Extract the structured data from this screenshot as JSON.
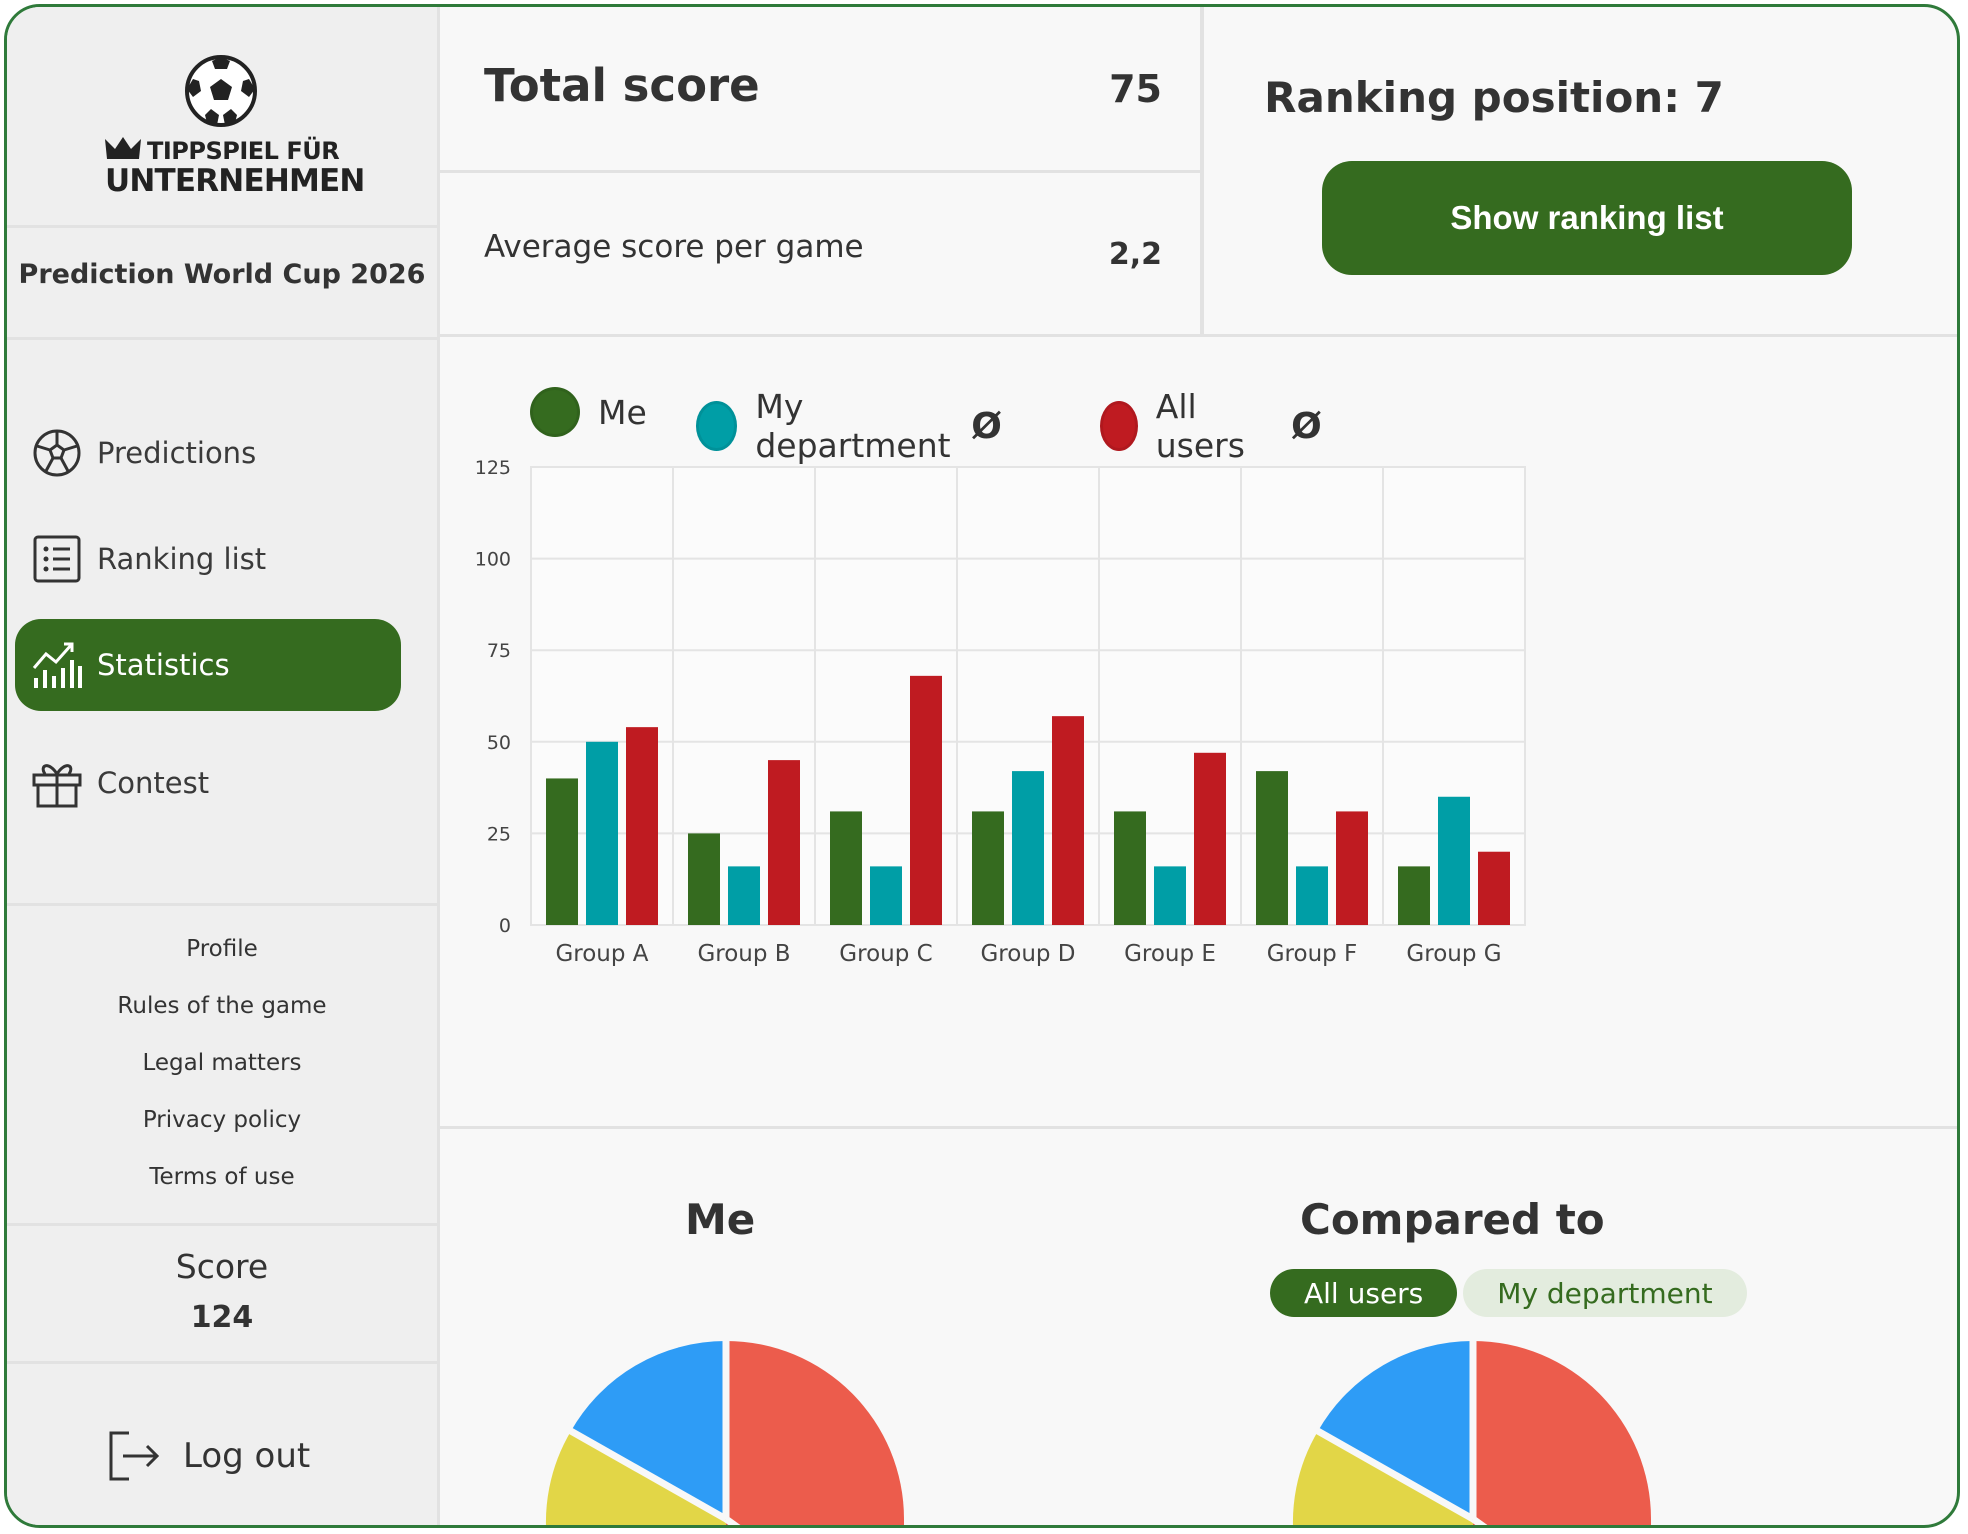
{
  "app": {
    "brand_line1": "TIPPSPIEL FÜR",
    "brand_line2": "UNTERNEHMEN",
    "game_title": "Prediction World Cup 2026"
  },
  "nav": [
    {
      "label": "Predictions",
      "icon": "soccer-ball-icon",
      "active": false
    },
    {
      "label": "Ranking list",
      "icon": "list-icon",
      "active": false
    },
    {
      "label": "Statistics",
      "icon": "chart-icon",
      "active": true
    },
    {
      "label": "Contest",
      "icon": "gift-icon",
      "active": false
    }
  ],
  "footer_links": [
    "Profile",
    "Rules of the game",
    "Legal matters",
    "Privacy policy",
    "Terms of use"
  ],
  "score": {
    "label": "Score",
    "value": "124"
  },
  "logout": {
    "label": "Log out"
  },
  "summary": {
    "total_label": "Total score",
    "total_value": "75",
    "avg_label": "Average score per game",
    "avg_value": "2,2",
    "ranking_label": "Ranking position: 7",
    "ranking_button": "Show ranking list"
  },
  "legend": {
    "me": "Me",
    "department": "My department",
    "all": "All users",
    "avg_symbol": "Ø"
  },
  "colors": {
    "accent": "#356b1f",
    "me": "#356b1f",
    "department": "#009ea6",
    "all": "#bf1b21",
    "pie_red": "#ec5c4c",
    "pie_blue": "#2e9cf6",
    "pie_yellow": "#e2d647"
  },
  "chart_data": {
    "type": "bar",
    "categories": [
      "Group A",
      "Group B",
      "Group C",
      "Group D",
      "Group E",
      "Group F",
      "Group G"
    ],
    "series": [
      {
        "name": "Me",
        "values": [
          40,
          25,
          31,
          31,
          31,
          42,
          16
        ]
      },
      {
        "name": "My department Ø",
        "values": [
          50,
          16,
          16,
          42,
          16,
          16,
          35
        ]
      },
      {
        "name": "All users Ø",
        "values": [
          54,
          45,
          68,
          57,
          47,
          31,
          20
        ]
      }
    ],
    "yticks": [
      0,
      25,
      50,
      75,
      100,
      125
    ],
    "ylim": [
      0,
      125
    ],
    "grid": true,
    "legend": "top"
  },
  "pies": {
    "me_title": "Me",
    "compare_title": "Compared to",
    "toggle": [
      {
        "label": "All users",
        "selected": true
      },
      {
        "label": "My department",
        "selected": false
      }
    ]
  }
}
